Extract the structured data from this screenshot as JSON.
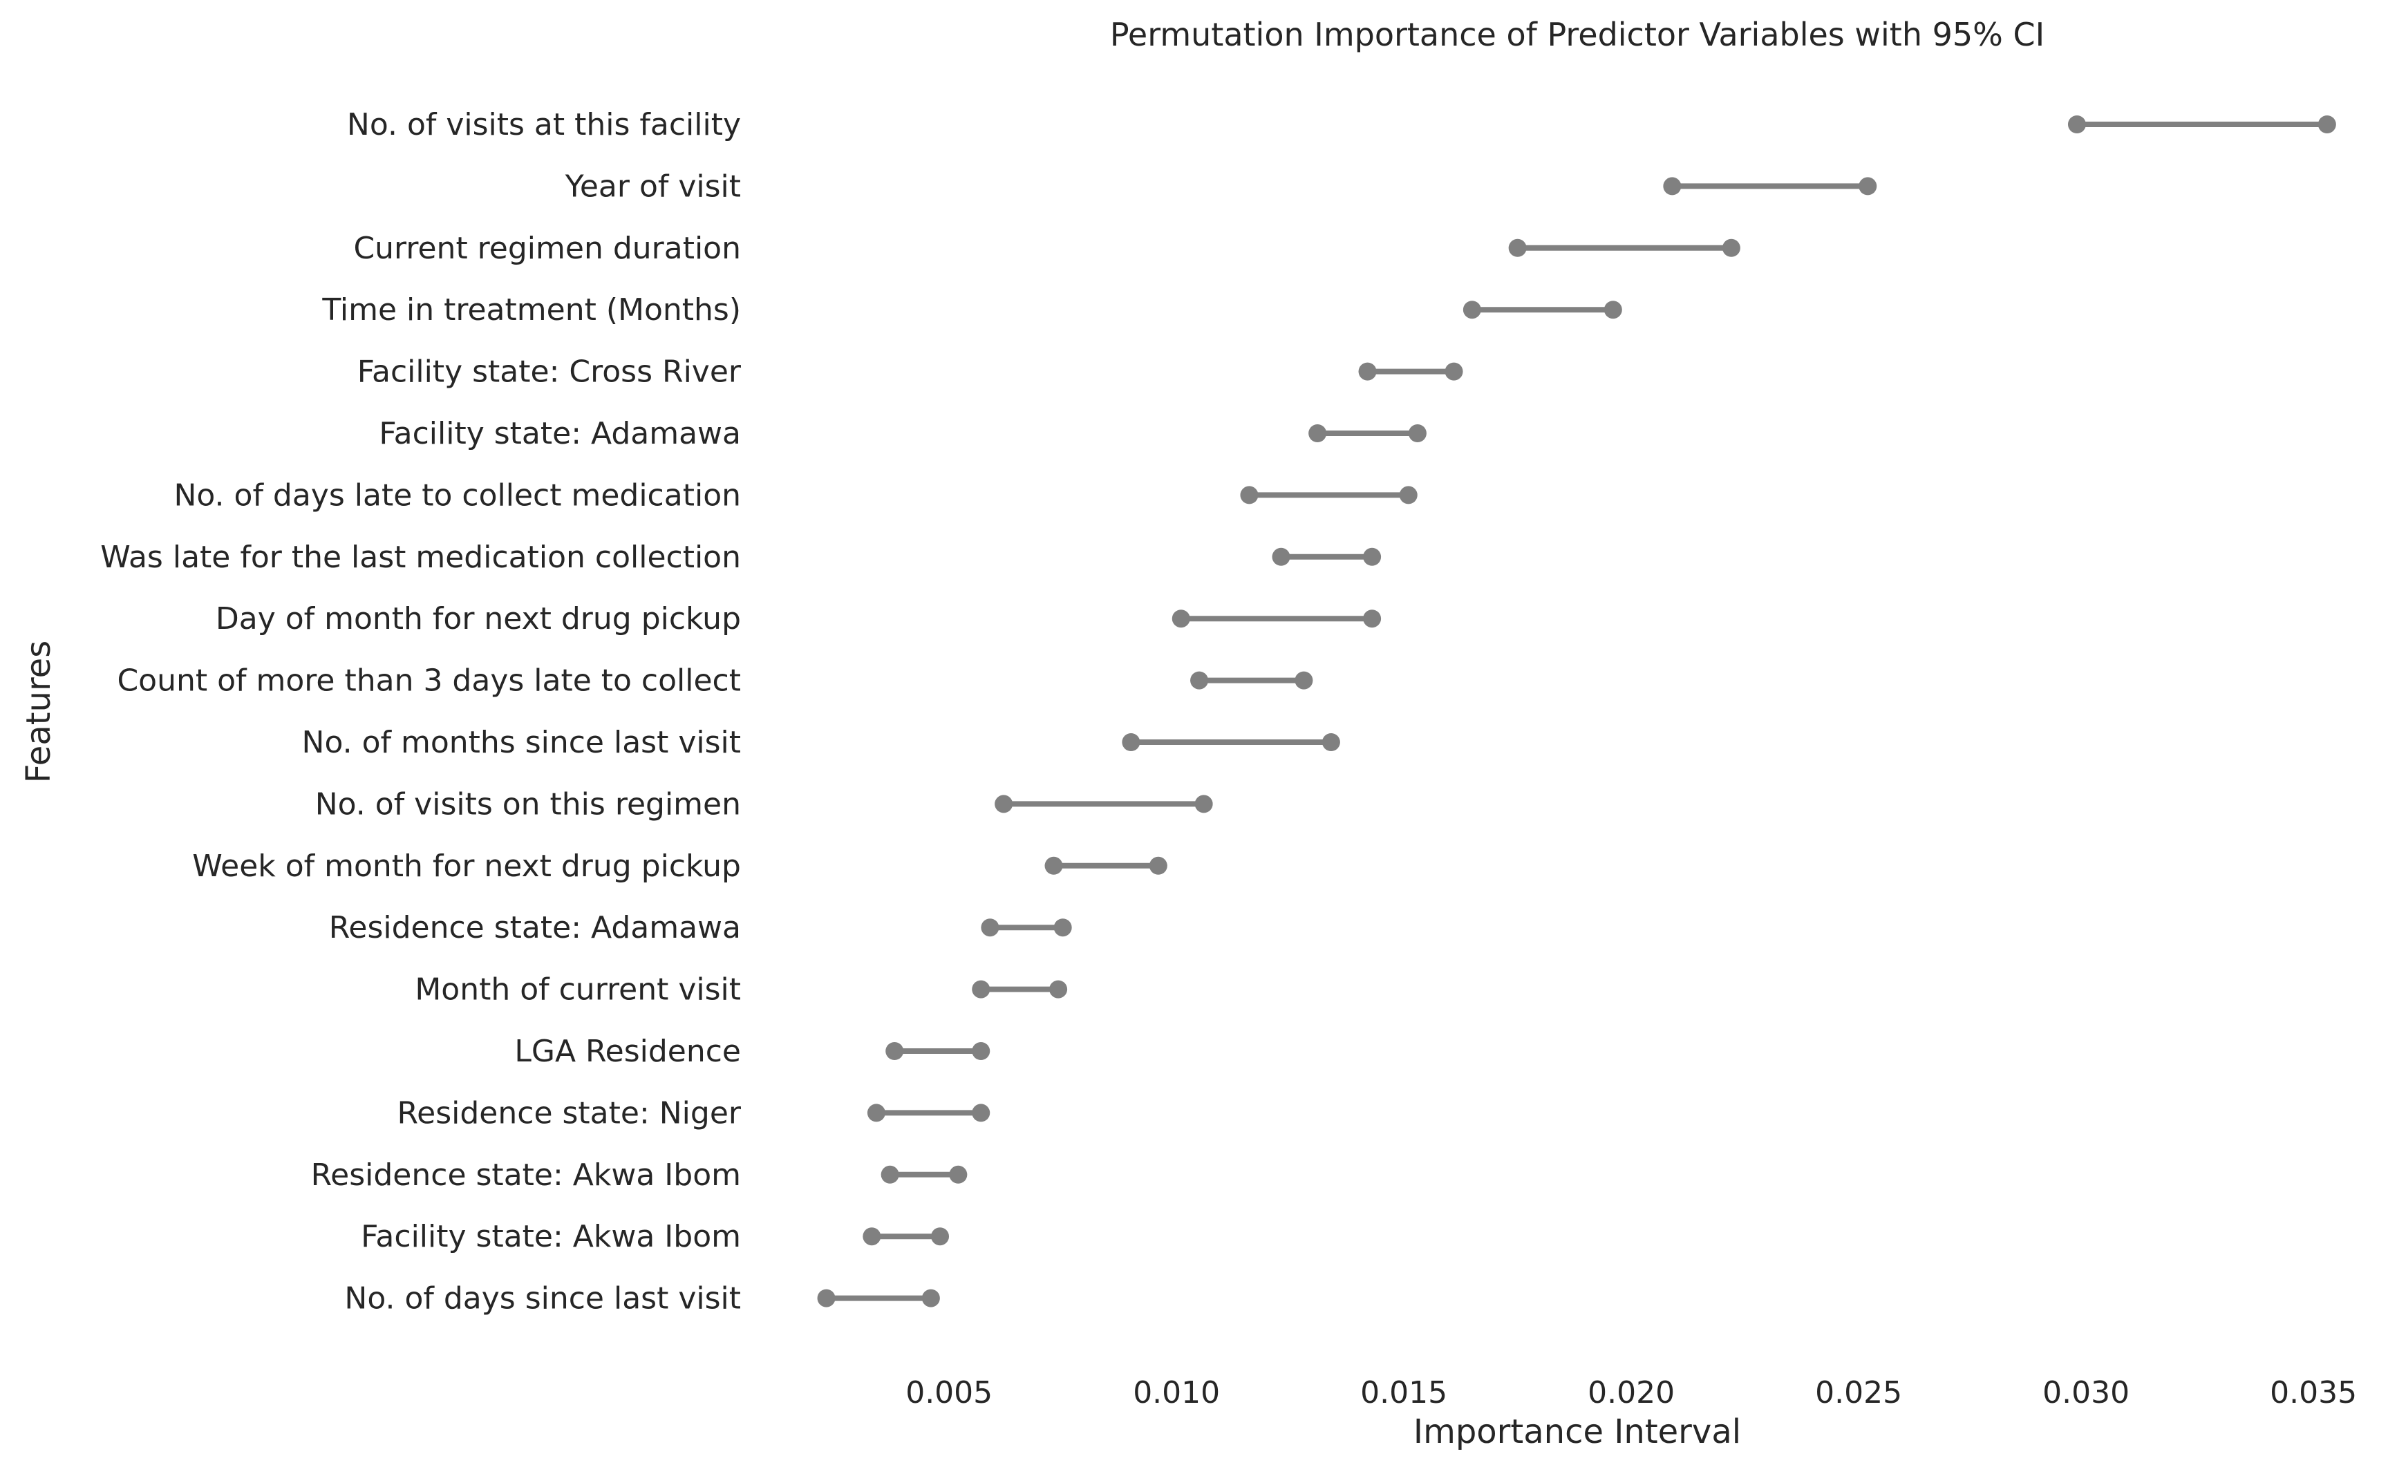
{
  "chart_data": {
    "type": "dumbbell",
    "title": "Permutation Importance of Predictor Variables with 95% CI",
    "xlabel": "Importance Interval",
    "ylabel": "Features",
    "xlim": [
      0.001,
      0.0355
    ],
    "xticks": [
      "0.005",
      "0.010",
      "0.015",
      "0.020",
      "0.025",
      "0.030",
      "0.035"
    ],
    "grid": false,
    "marker_color": "#808080",
    "text_color": "#262626",
    "categories": [
      "No. of visits at this facility",
      "Year of visit",
      "Current regimen duration",
      "Time in treatment (Months)",
      "Facility state: Cross River",
      "Facility state: Adamawa",
      "No. of days late to collect medication",
      "Was late for the last medication collection",
      "Day of month for next drug pickup",
      "Count of more than 3 days late to collect",
      "No. of months since last visit",
      "No. of visits on this regimen",
      "Week of month for next drug pickup",
      "Residence state: Adamawa",
      "Month of current visit",
      "LGA Residence",
      "Residence state: Niger",
      "Residence state: Akwa Ibom",
      "Facility state: Akwa Ibom",
      "No. of days since last visit"
    ],
    "lower": [
      0.0298,
      0.0209,
      0.0175,
      0.0165,
      0.0142,
      0.0131,
      0.0116,
      0.0123,
      0.0101,
      0.0105,
      0.009,
      0.0062,
      0.0073,
      0.0059,
      0.0057,
      0.0038,
      0.0034,
      0.0037,
      0.0033,
      0.0023
    ],
    "upper": [
      0.0353,
      0.0252,
      0.0222,
      0.0196,
      0.0161,
      0.0153,
      0.0151,
      0.0143,
      0.0143,
      0.0128,
      0.0134,
      0.0106,
      0.0096,
      0.0075,
      0.0074,
      0.0057,
      0.0057,
      0.0052,
      0.0048,
      0.0046
    ]
  }
}
